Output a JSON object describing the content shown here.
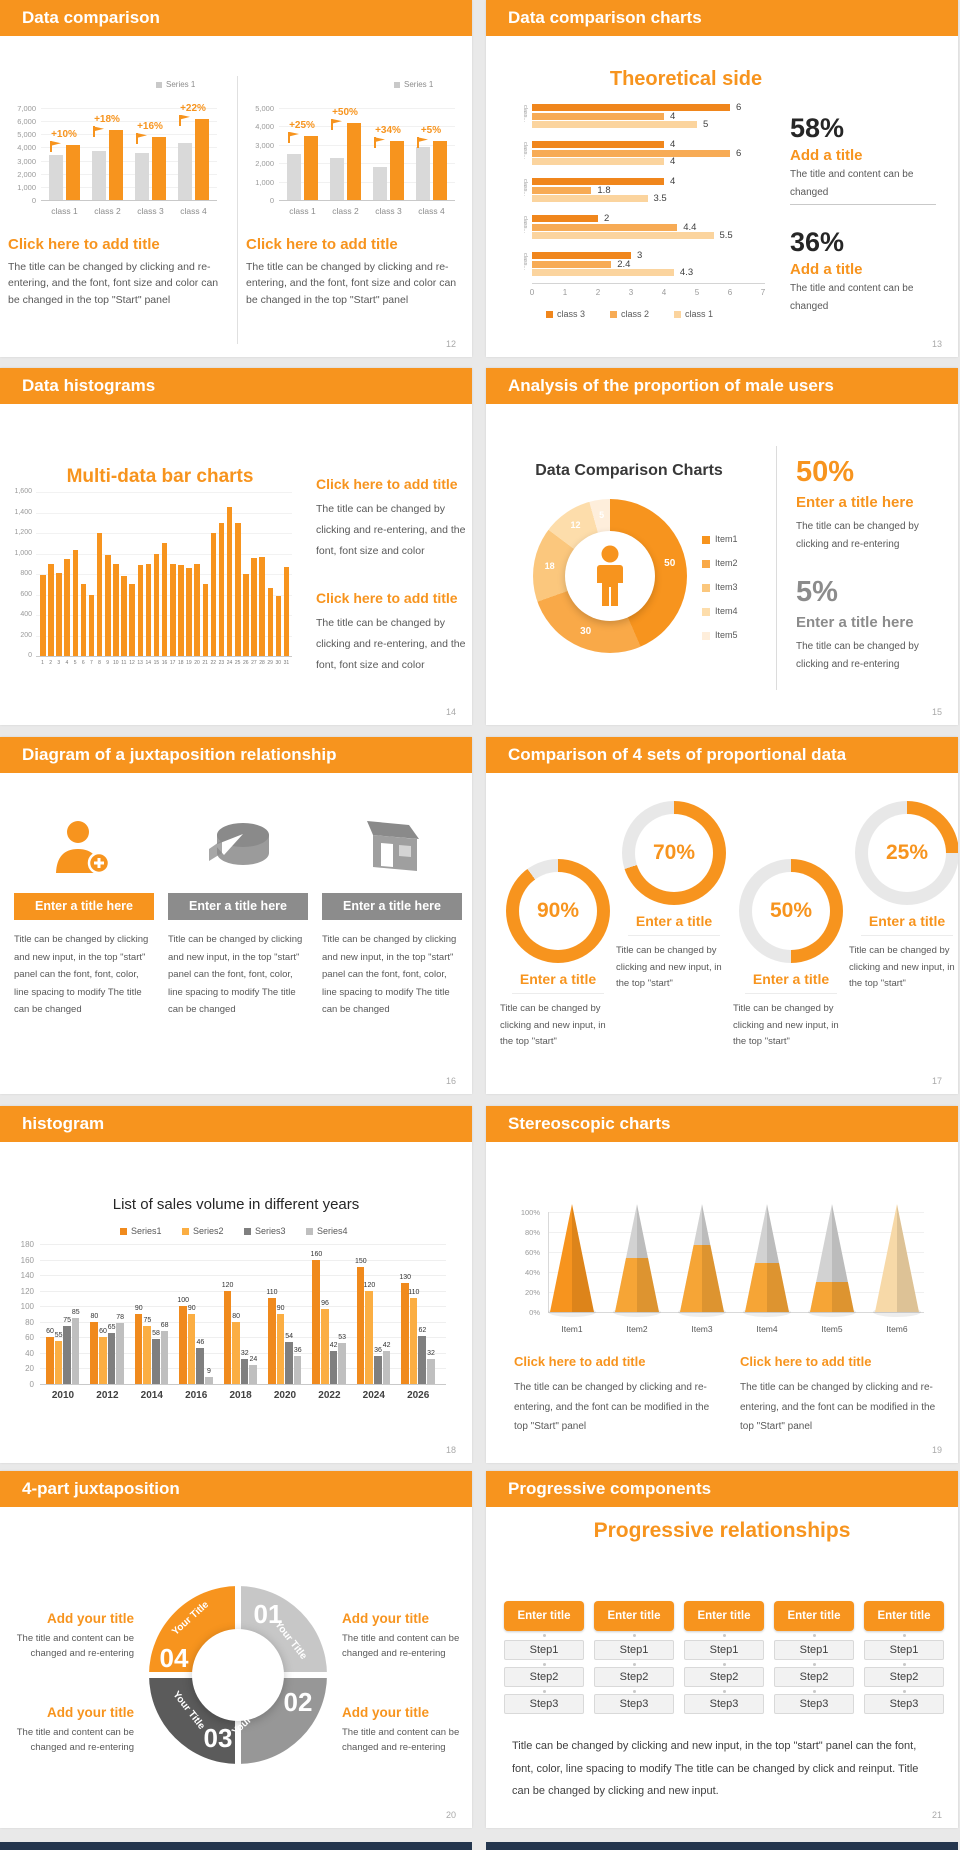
{
  "colors": {
    "accent": "#f7941e",
    "gray_bar": "#d9d9d9",
    "text_body": "#595959",
    "text_dark": "#262626",
    "gray_tone": "#8c8c8c",
    "navy_strip": "#24364e",
    "canvas_bg": "#e9e9e9"
  },
  "slides": {
    "s1": {
      "header": "Data comparison",
      "page": "12",
      "charts": [
        {
          "legend": "Series 1",
          "ymax": 7000,
          "yticks": [
            "7,000",
            "6,000",
            "5,000",
            "4,000",
            "3,000",
            "2,000",
            "1,000",
            "0"
          ],
          "categories": [
            "class 1",
            "class 2",
            "class 3",
            "class 4"
          ],
          "gray": [
            3400,
            3700,
            3600,
            4300
          ],
          "orange": [
            4200,
            5300,
            4800,
            6200
          ],
          "growth": [
            "+10%",
            "+18%",
            "+16%",
            "+22%"
          ]
        },
        {
          "legend": "Series 1",
          "ymax": 5000,
          "yticks": [
            "5,000",
            "4,000",
            "3,000",
            "2,000",
            "1,000",
            "0"
          ],
          "categories": [
            "class 1",
            "class 2",
            "class 3",
            "class 4"
          ],
          "gray": [
            2500,
            2300,
            1800,
            2900
          ],
          "orange": [
            3500,
            4200,
            3200,
            3200
          ],
          "growth": [
            "+25%",
            "+50%",
            "+34%",
            "+5%"
          ]
        }
      ],
      "blocks": [
        {
          "title": "Click here to add title",
          "body": "The title can be changed by clicking and re-entering, and the font, font size and color can be changed in the top \"Start\" panel"
        },
        {
          "title": "Click here to add title",
          "body": "The title can be changed by clicking and re-entering, and the font, font size and color can be changed in the top \"Start\" panel"
        }
      ]
    },
    "s2": {
      "header": "Data comparison charts",
      "page": "13",
      "chart_title": "Theoretical side",
      "group_label": "class...",
      "bar_colors": [
        "#f0861c",
        "#f7ab55",
        "#fbd49e"
      ],
      "groups": [
        [
          6,
          4,
          5
        ],
        [
          4,
          6,
          4
        ],
        [
          4,
          1.8,
          3.5
        ],
        [
          2,
          4.4,
          5.5
        ],
        [
          3,
          2.4,
          4.3
        ]
      ],
      "xticks": [
        "0",
        "1",
        "2",
        "3",
        "4",
        "5",
        "6",
        "7"
      ],
      "xmax": 7,
      "legend": [
        "class 3",
        "class 2",
        "class 1"
      ],
      "stats": [
        {
          "value": "58%",
          "title": "Add a title",
          "body": "The title and content can be changed"
        },
        {
          "value": "36%",
          "title": "Add a title",
          "body": "The title and content can be changed"
        }
      ]
    },
    "s3": {
      "header": "Data histograms",
      "page": "14",
      "chart_title": "Multi-data bar charts",
      "ymax": 1600,
      "yticks": [
        "1,600",
        "1,400",
        "1,200",
        "1,000",
        "800",
        "600",
        "400",
        "200",
        "0"
      ],
      "values": [
        790,
        900,
        810,
        950,
        1030,
        700,
        600,
        1200,
        990,
        900,
        780,
        700,
        890,
        900,
        1000,
        1100,
        900,
        890,
        860,
        900,
        700,
        1200,
        1300,
        1450,
        1300,
        800,
        960,
        970,
        660,
        590,
        870
      ],
      "xlabels": [
        "1",
        "2",
        "3",
        "4",
        "5",
        "6",
        "7",
        "8",
        "9",
        "10",
        "11",
        "12",
        "13",
        "14",
        "15",
        "16",
        "17",
        "18",
        "19",
        "20",
        "21",
        "22",
        "23",
        "24",
        "25",
        "26",
        "27",
        "28",
        "29",
        "30",
        "31"
      ],
      "blocks": [
        {
          "title": "Click here to add title",
          "body": "The title can be changed by clicking and re-entering, and the font, font size and color"
        },
        {
          "title": "Click here to add title",
          "body": "The title can be changed by clicking and re-entering, and the font, font size and color"
        }
      ]
    },
    "s4": {
      "header": "Analysis of the proportion of male users",
      "page": "15",
      "chart_title": "Data Comparison Charts",
      "donut": {
        "values": [
          50,
          30,
          18,
          12,
          5
        ],
        "labels": [
          "50",
          "30",
          "18",
          "12",
          "5"
        ],
        "colors": [
          "#f7941e",
          "#f9a948",
          "#fbc77d",
          "#fdddab",
          "#feeedb"
        ],
        "legend": [
          "Item1",
          "Item2",
          "Item3",
          "Item4",
          "Item5"
        ]
      },
      "stats": [
        {
          "value": "50%",
          "title": "Enter a title here",
          "body": "The title can be changed by clicking and re-entering",
          "tone": "accent"
        },
        {
          "value": "5%",
          "title": "Enter a title here",
          "body": "The title can be changed by clicking and re-entering",
          "tone": "gray"
        }
      ]
    },
    "s5": {
      "header": "Diagram of a juxtaposition relationship",
      "page": "16",
      "items": [
        {
          "icon": "person-add-icon",
          "tone": "accent",
          "title": "Enter a title here",
          "body": "Title can be changed by clicking and new input, in the top \"start\" panel can the font, font, color, line spacing to modify The title can be changed"
        },
        {
          "icon": "pie-cake-icon",
          "tone": "gray",
          "title": "Enter a title here",
          "body": "Title can be changed by clicking and new input, in the top \"start\" panel can the font, font, color, line spacing to modify The title can be changed"
        },
        {
          "icon": "storefront-icon",
          "tone": "gray",
          "title": "Enter a title here",
          "body": "Title can be changed by clicking and new input, in the top \"start\" panel can the font, font, color, line spacing to modify The title can be changed"
        }
      ]
    },
    "s6": {
      "header": "Comparison of 4 sets of proportional data",
      "page": "17",
      "rings": [
        {
          "value": 90,
          "label": "90%",
          "raised": false,
          "title": "Enter a title",
          "body": "Title can be changed by clicking and new input, in the top \"start\""
        },
        {
          "value": 70,
          "label": "70%",
          "raised": true,
          "title": "Enter a title",
          "body": "Title can be changed by clicking and new input, in the top \"start\""
        },
        {
          "value": 50,
          "label": "50%",
          "raised": false,
          "title": "Enter a title",
          "body": "Title can be changed by clicking and new input, in the top \"start\""
        },
        {
          "value": 25,
          "label": "25%",
          "raised": true,
          "title": "Enter a title",
          "body": "Title can be changed by clicking and new input, in the top \"start\""
        }
      ]
    },
    "s7": {
      "header": "histogram",
      "page": "18",
      "chart_title": "List of sales volume in different years",
      "legend": [
        "Series1",
        "Series2",
        "Series3",
        "Series4"
      ],
      "series_colors": [
        "#f08a1d",
        "#fbae43",
        "#7f7f7f",
        "#bfbfbf"
      ],
      "categories": [
        "2010",
        "2012",
        "2014",
        "2016",
        "2018",
        "2020",
        "2022",
        "2024",
        "2026"
      ],
      "series": [
        [
          60,
          80,
          90,
          100,
          120,
          110,
          160,
          150,
          130
        ],
        [
          55,
          60,
          75,
          90,
          80,
          90,
          96,
          120,
          110
        ],
        [
          75,
          65,
          58,
          46,
          32,
          54,
          42,
          36,
          62
        ],
        [
          85,
          78,
          68,
          9,
          24,
          36,
          53,
          42,
          32
        ]
      ],
      "ymax": 180,
      "yticks": [
        "0",
        "20",
        "40",
        "60",
        "80",
        "100",
        "120",
        "140",
        "160",
        "180"
      ]
    },
    "s8": {
      "header": "Stereoscopic charts",
      "page": "19",
      "yticks": [
        "0%",
        "20%",
        "40%",
        "60%",
        "80%",
        "100%"
      ],
      "items": [
        "Item1",
        "Item2",
        "Item3",
        "Item4",
        "Item5",
        "Item6"
      ],
      "fills": [
        1,
        0.5,
        0.62,
        0.45,
        0.28,
        1
      ],
      "cone_colors": [
        "#f7941e",
        "#f6a536",
        "#f6a536",
        "#f6a536",
        "#f6a536",
        "#f7d9a8"
      ],
      "blocks": [
        {
          "title": "Click here to add title",
          "body": "The title can be changed by clicking and re-entering, and the font can be modified in the top \"Start\" panel"
        },
        {
          "title": "Click here to add title",
          "body": "The title can be changed by clicking and re-entering, and the font can be modified in the top \"Start\" panel"
        }
      ]
    },
    "s9": {
      "header": "4-part juxtaposition",
      "page": "20",
      "segments": [
        {
          "num": "01",
          "label": "Your Title",
          "color": "#c7c7c7"
        },
        {
          "num": "02",
          "label": "Your Title",
          "color": "#979797"
        },
        {
          "num": "03",
          "label": "Your Title",
          "color": "#5b5b5b"
        },
        {
          "num": "04",
          "label": "Your Title",
          "color": "#f7941e"
        }
      ],
      "callouts": [
        {
          "title": "Add your title",
          "body": "The title and content can be changed and re-entering"
        },
        {
          "title": "Add your title",
          "body": "The title and content can be changed and re-entering"
        },
        {
          "title": "Add your title",
          "body": "The title and content can be changed and re-entering"
        },
        {
          "title": "Add your title",
          "body": "The title and content can be changed and re-entering"
        }
      ]
    },
    "s10": {
      "header": "Progressive components",
      "page": "21",
      "chart_title": "Progressive relationships",
      "columns": [
        {
          "button": "Enter title",
          "steps": [
            "Step1",
            "Step2",
            "Step3"
          ]
        },
        {
          "button": "Enter title",
          "steps": [
            "Step1",
            "Step2",
            "Step3"
          ]
        },
        {
          "button": "Enter title",
          "steps": [
            "Step1",
            "Step2",
            "Step3"
          ]
        },
        {
          "button": "Enter title",
          "steps": [
            "Step1",
            "Step2",
            "Step3"
          ]
        },
        {
          "button": "Enter title",
          "steps": [
            "Step1",
            "Step2",
            "Step3"
          ]
        }
      ],
      "body": "Title can be changed by clicking and new input, in the top \"start\" panel can the font, font, color, line spacing to modify The title can be changed by click and reinput. Title can be changed by clicking and new input."
    }
  }
}
